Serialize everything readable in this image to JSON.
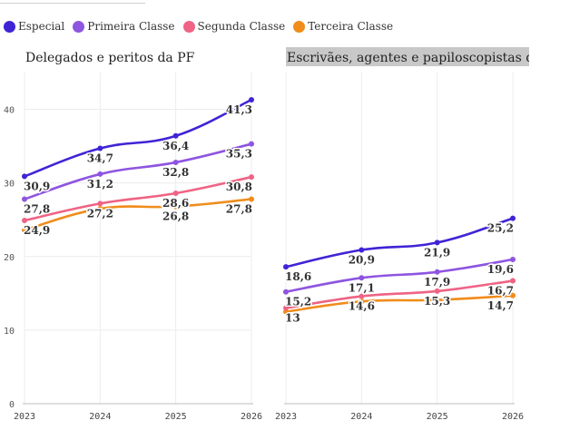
{
  "legend": {
    "items": [
      {
        "label": "Especial",
        "color": "#3f24d6"
      },
      {
        "label": "Primeira Classe",
        "color": "#8e55e0"
      },
      {
        "label": "Segunda Classe",
        "color": "#ef6384"
      },
      {
        "label": "Terceira Classe",
        "color": "#f08c1b"
      }
    ]
  },
  "chart_data": [
    {
      "type": "line",
      "title": "Delegados e peritos da PF",
      "x": [
        "2023",
        "2024",
        "2025",
        "2026"
      ],
      "ylim": [
        0,
        45
      ],
      "yticks": [
        0,
        10,
        20,
        30,
        40
      ],
      "grid": true,
      "series": [
        {
          "name": "Especial",
          "values": [
            30.9,
            34.7,
            36.4,
            41.3
          ],
          "labels": [
            "30,9",
            "34,7",
            "36,4",
            "41,3"
          ]
        },
        {
          "name": "Primeira Classe",
          "values": [
            27.8,
            31.2,
            32.8,
            35.3
          ],
          "labels": [
            "27,8",
            "31,2",
            "32,8",
            "35,3"
          ]
        },
        {
          "name": "Segunda Classe",
          "values": [
            24.9,
            27.2,
            28.6,
            30.8
          ],
          "labels": [
            "24,9",
            "27,2",
            "28,6",
            "30,8"
          ]
        },
        {
          "name": "Terceira Classe",
          "values": [
            23.6,
            26.5,
            26.8,
            27.8
          ],
          "labels": [
            "",
            "",
            "26,8",
            "27,8"
          ]
        }
      ]
    },
    {
      "type": "line",
      "title": "Escrivães, agentes e papiloscopistas da PF",
      "x": [
        "2023",
        "2024",
        "2025",
        "2026"
      ],
      "ylim": [
        0,
        45
      ],
      "grid": true,
      "series": [
        {
          "name": "Especial",
          "values": [
            18.6,
            20.9,
            21.9,
            25.2
          ],
          "labels": [
            "18,6",
            "20,9",
            "21,9",
            "25,2"
          ]
        },
        {
          "name": "Primeira Classe",
          "values": [
            15.2,
            17.1,
            17.9,
            19.6
          ],
          "labels": [
            "15,2",
            "17,1",
            "17,9",
            "19,6"
          ]
        },
        {
          "name": "Segunda Classe",
          "values": [
            13,
            14.6,
            15.3,
            16.7
          ],
          "labels": [
            "13",
            "14,6",
            "15,3",
            "16,7"
          ]
        },
        {
          "name": "Terceira Classe",
          "values": [
            12.5,
            13.9,
            14.1,
            14.7
          ],
          "labels": [
            "",
            "",
            "",
            "14,7"
          ]
        }
      ]
    }
  ]
}
